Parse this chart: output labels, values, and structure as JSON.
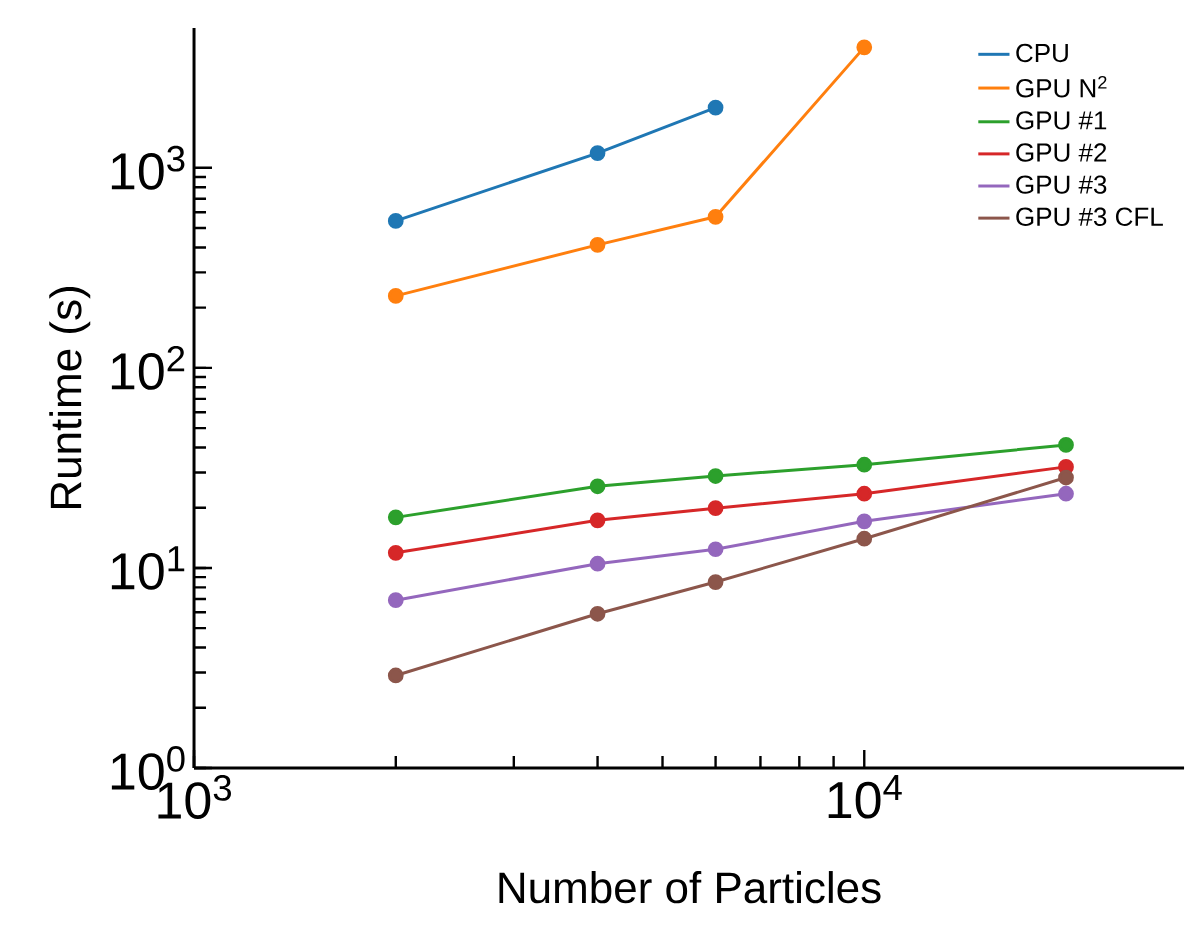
{
  "chart_data": {
    "type": "line",
    "xlabel": "Number of Particles",
    "ylabel": "Runtime (s)",
    "log": "xy",
    "xlim": [
      1000,
      30000
    ],
    "ylim": [
      1,
      5000
    ],
    "xticks": [
      {
        "value": 1000,
        "label": "10$^{3}$"
      },
      {
        "value": 10000,
        "label": "10$^{4}$"
      }
    ],
    "yticks": [
      {
        "value": 1,
        "label": "10$^{0}$"
      },
      {
        "value": 10,
        "label": "10$^{1}$"
      },
      {
        "value": 100,
        "label": "10$^{2}$"
      },
      {
        "value": 1000,
        "label": "10$^{3}$"
      }
    ],
    "grid": false,
    "legend": "top right",
    "marker": "circle",
    "line_style": "solid",
    "series": [
      {
        "name": "CPU",
        "color": "#1f77b4",
        "x": [
          2000,
          4000,
          6000
        ],
        "values": [
          543,
          1185,
          2000
        ]
      },
      {
        "name": "GPU N$^{2}$",
        "color": "#ff7f0e",
        "x": [
          2000,
          4000,
          6000,
          10000
        ],
        "values": [
          229,
          412,
          569,
          4000
        ]
      },
      {
        "name": "GPU #1",
        "color": "#2ca02c",
        "x": [
          2000,
          4000,
          6000,
          10000,
          20000
        ],
        "values": [
          17.9,
          25.6,
          28.8,
          32.8,
          41.2
        ]
      },
      {
        "name": "GPU #2",
        "color": "#d62728",
        "x": [
          2000,
          4000,
          6000,
          10000,
          20000
        ],
        "values": [
          11.9,
          17.3,
          19.9,
          23.5,
          32
        ]
      },
      {
        "name": "GPU #3",
        "color": "#9467bd",
        "x": [
          2000,
          4000,
          6000,
          10000,
          20000
        ],
        "values": [
          6.9,
          10.5,
          12.4,
          17.1,
          23.5
        ]
      },
      {
        "name": "GPU #3 CFL",
        "color": "#8c564b",
        "x": [
          2000,
          4000,
          6000,
          10000,
          20000
        ],
        "values": [
          2.9,
          5.9,
          8.5,
          14.0,
          28.3
        ]
      }
    ]
  }
}
